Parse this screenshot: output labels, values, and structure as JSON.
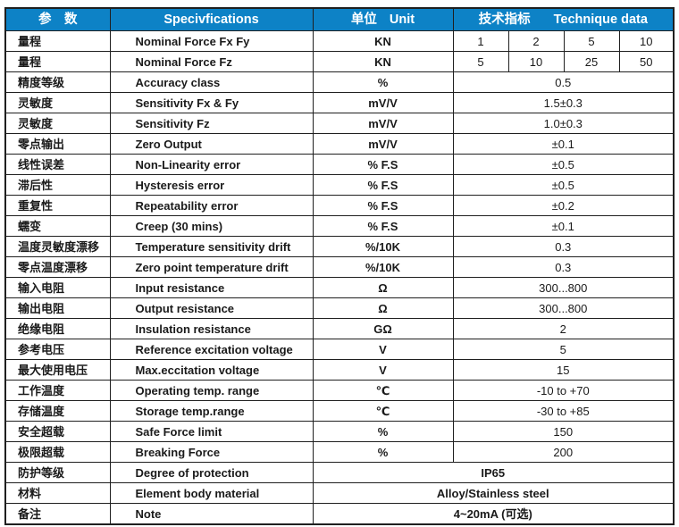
{
  "colors": {
    "header_bg": "#0d82c6",
    "header_text": "#ffffff",
    "border": "#1f1f1f"
  },
  "table": {
    "headers": {
      "param_cn": "参　数",
      "spec": "Specivfications",
      "unit_cn": "单位",
      "unit_en": "Unit",
      "tech_cn": "技术指标",
      "tech_en": "Technique data"
    },
    "rows": [
      {
        "param": "量程",
        "spec": "Nominal Force Fx Fy",
        "unit": "KN",
        "values": [
          "1",
          "2",
          "5",
          "10"
        ]
      },
      {
        "param": "量程",
        "spec": "Nominal Force Fz",
        "unit": "KN",
        "values": [
          "5",
          "10",
          "25",
          "50"
        ]
      },
      {
        "param": "精度等级",
        "spec": "Accuracy class",
        "unit": "%",
        "value": "0.5"
      },
      {
        "param": "灵敏度",
        "spec": "Sensitivity Fx & Fy",
        "unit": "mV/V",
        "value": "1.5±0.3"
      },
      {
        "param": "灵敏度",
        "spec": "Sensitivity Fz",
        "unit": "mV/V",
        "value": "1.0±0.3"
      },
      {
        "param": "零点输出",
        "spec": "Zero Output",
        "unit": "mV/V",
        "value": "±0.1"
      },
      {
        "param": "线性误差",
        "spec": "Non-Linearity error",
        "unit": "% F.S",
        "value": "±0.5"
      },
      {
        "param": "滞后性",
        "spec": "Hysteresis error",
        "unit": "% F.S",
        "value": "±0.5"
      },
      {
        "param": "重复性",
        "spec": "Repeatability error",
        "unit": "% F.S",
        "value": "±0.2"
      },
      {
        "param": "蠕变",
        "spec": "Creep (30 mins)",
        "unit": "% F.S",
        "value": "±0.1"
      },
      {
        "param": "温度灵敏度漂移",
        "spec": "Temperature sensitivity drift",
        "unit": "%/10K",
        "value": "0.3"
      },
      {
        "param": "零点温度漂移",
        "spec": "Zero point temperature drift",
        "unit": "%/10K",
        "value": "0.3"
      },
      {
        "param": "输入电阻",
        "spec": "Input resistance",
        "unit": "Ω",
        "value": "300...800"
      },
      {
        "param": "输出电阻",
        "spec": "Output resistance",
        "unit": "Ω",
        "value": "300...800"
      },
      {
        "param": "绝缘电阻",
        "spec": "Insulation resistance",
        "unit": "GΩ",
        "value": "2"
      },
      {
        "param": "参考电压",
        "spec": "Reference excitation voltage",
        "unit": "V",
        "value": "5"
      },
      {
        "param": "最大使用电压",
        "spec": "Max.eccitation voltage",
        "unit": "V",
        "value": "15"
      },
      {
        "param": "工作温度",
        "spec": "Operating temp. range",
        "unit": "℃",
        "value": "-10 to +70"
      },
      {
        "param": "存储温度",
        "spec": "Storage temp.range",
        "unit": "℃",
        "value": "-30 to +85"
      },
      {
        "param": "安全超载",
        "spec": "Safe Force limit",
        "unit": "%",
        "value": "150"
      },
      {
        "param": "极限超载",
        "spec": "Breaking Force",
        "unit": "%",
        "value": "200"
      },
      {
        "param": "防护等级",
        "spec": "Degree of protection",
        "merged_value": "IP65"
      },
      {
        "param": "材料",
        "spec": "Element body material",
        "merged_value": "Alloy/Stainless steel"
      },
      {
        "param": "备注",
        "spec": "Note",
        "merged_value": "4~20mA (可选)"
      }
    ]
  }
}
